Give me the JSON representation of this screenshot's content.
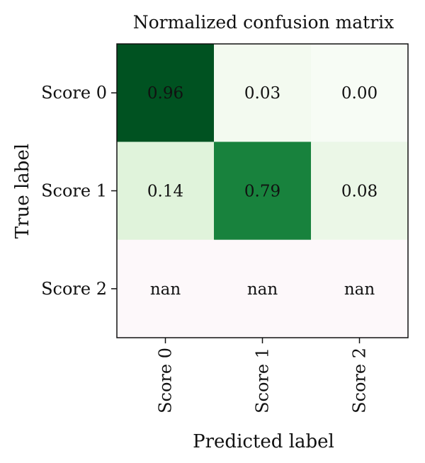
{
  "chart_data": {
    "type": "heatmap",
    "title": "Normalized confusion matrix",
    "xlabel": "Predicted label",
    "ylabel": "True label",
    "x_categories": [
      "Score 0",
      "Score 1",
      "Score 2"
    ],
    "y_categories": [
      "Score 0",
      "Score 1",
      "Score 2"
    ],
    "values": [
      [
        0.96,
        0.03,
        0.0
      ],
      [
        0.14,
        0.79,
        0.08
      ],
      [
        null,
        null,
        null
      ]
    ],
    "value_labels": [
      [
        "0.96",
        "0.03",
        "0.00"
      ],
      [
        "0.14",
        "0.79",
        "0.08"
      ],
      [
        "nan",
        "nan",
        "nan"
      ]
    ],
    "colormap": "Greens",
    "nan_color": "#fdf8fa",
    "value_range": [
      0,
      1
    ],
    "grid": false,
    "legend": "none"
  }
}
